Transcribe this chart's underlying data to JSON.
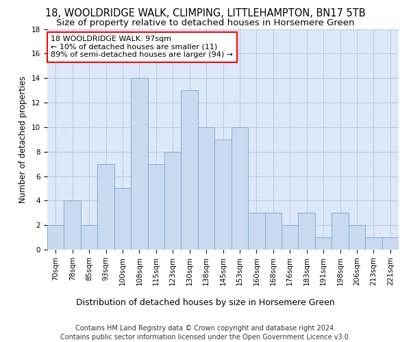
{
  "title1": "18, WOOLDRIDGE WALK, CLIMPING, LITTLEHAMPTON, BN17 5TB",
  "title2": "Size of property relative to detached houses in Horsemere Green",
  "xlabel": "Distribution of detached houses by size in Horsemere Green",
  "ylabel": "Number of detached properties",
  "footer1": "Contains HM Land Registry data © Crown copyright and database right 2024.",
  "footer2": "Contains public sector information licensed under the Open Government Licence v3.0.",
  "annotation_line1": "18 WOOLDRIDGE WALK: 97sqm",
  "annotation_line2": "← 10% of detached houses are smaller (11)",
  "annotation_line3": "89% of semi-detached houses are larger (94) →",
  "bar_labels": [
    "70sqm",
    "78sqm",
    "85sqm",
    "93sqm",
    "100sqm",
    "108sqm",
    "115sqm",
    "123sqm",
    "130sqm",
    "138sqm",
    "145sqm",
    "153sqm",
    "160sqm",
    "168sqm",
    "176sqm",
    "183sqm",
    "191sqm",
    "198sqm",
    "206sqm",
    "213sqm",
    "221sqm"
  ],
  "bar_values": [
    2,
    4,
    2,
    7,
    5,
    14,
    7,
    8,
    13,
    10,
    9,
    10,
    3,
    3,
    2,
    3,
    1,
    3,
    2,
    1,
    1
  ],
  "bar_color": "#c9daf0",
  "bar_edge_color": "#7baad4",
  "ylim": [
    0,
    18
  ],
  "yticks": [
    0,
    2,
    4,
    6,
    8,
    10,
    12,
    14,
    16,
    18
  ],
  "bg_color": "#ffffff",
  "plot_bg_color": "#dce8f8",
  "grid_color": "#b8c8dc",
  "title1_fontsize": 10.5,
  "title2_fontsize": 9.5,
  "ylabel_fontsize": 8.5,
  "xlabel_fontsize": 9,
  "tick_fontsize": 7.5,
  "footer_fontsize": 7,
  "annotation_fontsize": 8
}
